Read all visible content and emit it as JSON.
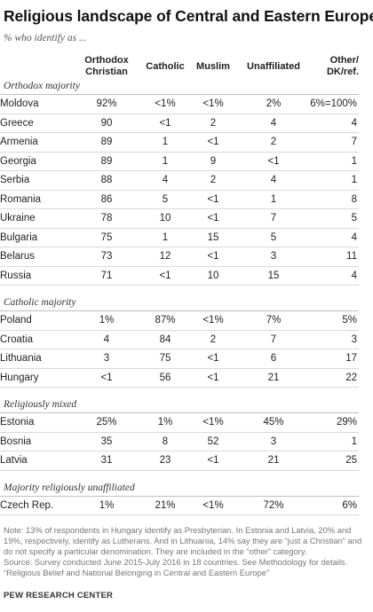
{
  "chart_data": {
    "type": "table",
    "title": "Religious landscape of Central and Eastern Europe",
    "subtitle": "% who identify as ...",
    "columns": [
      {
        "label": "Orthodox Christian",
        "lines": [
          "Orthodox",
          "Christian"
        ]
      },
      {
        "label": "Catholic",
        "lines": [
          "Catholic"
        ]
      },
      {
        "label": "Muslim",
        "lines": [
          "Muslim"
        ]
      },
      {
        "label": "Unaffiliated",
        "lines": [
          "Unaffiliated"
        ]
      },
      {
        "label": "Other/ DK/ref.",
        "lines": [
          "Other/",
          "DK/ref."
        ]
      }
    ],
    "groups": [
      {
        "label": "Orthodox majority",
        "rows": [
          {
            "country": "Moldova",
            "values": [
              "92%",
              "<1%",
              "<1%",
              "2%",
              "6%=100%"
            ]
          },
          {
            "country": "Greece",
            "values": [
              "90",
              "<1",
              "2",
              "4",
              "4"
            ]
          },
          {
            "country": "Armenia",
            "values": [
              "89",
              "1",
              "<1",
              "2",
              "7"
            ]
          },
          {
            "country": "Georgia",
            "values": [
              "89",
              "1",
              "9",
              "<1",
              "1"
            ]
          },
          {
            "country": "Serbia",
            "values": [
              "88",
              "4",
              "2",
              "4",
              "1"
            ]
          },
          {
            "country": "Romania",
            "values": [
              "86",
              "5",
              "<1",
              "1",
              "8"
            ]
          },
          {
            "country": "Ukraine",
            "values": [
              "78",
              "10",
              "<1",
              "7",
              "5"
            ]
          },
          {
            "country": "Bulgaria",
            "values": [
              "75",
              "1",
              "15",
              "5",
              "4"
            ]
          },
          {
            "country": "Belarus",
            "values": [
              "73",
              "12",
              "<1",
              "3",
              "11"
            ]
          },
          {
            "country": "Russia",
            "values": [
              "71",
              "<1",
              "10",
              "15",
              "4"
            ]
          }
        ]
      },
      {
        "label": "Catholic majority",
        "rows": [
          {
            "country": "Poland",
            "values": [
              "1%",
              "87%",
              "<1%",
              "7%",
              "5%"
            ]
          },
          {
            "country": "Croatia",
            "values": [
              "4",
              "84",
              "2",
              "7",
              "3"
            ]
          },
          {
            "country": "Lithuania",
            "values": [
              "3",
              "75",
              "<1",
              "6",
              "17"
            ]
          },
          {
            "country": "Hungary",
            "values": [
              "<1",
              "56",
              "<1",
              "21",
              "22"
            ]
          }
        ]
      },
      {
        "label": "Religiously mixed",
        "rows": [
          {
            "country": "Estonia",
            "values": [
              "25%",
              "1%",
              "<1%",
              "45%",
              "29%"
            ]
          },
          {
            "country": "Bosnia",
            "values": [
              "35",
              "8",
              "52",
              "3",
              "1"
            ]
          },
          {
            "country": "Latvia",
            "values": [
              "31",
              "23",
              "<1",
              "21",
              "25"
            ]
          }
        ]
      },
      {
        "label": "Majority religiously unaffiliated",
        "rows": [
          {
            "country": "Czech Rep.",
            "values": [
              "1%",
              "21%",
              "<1%",
              "72%",
              "6%"
            ]
          }
        ]
      }
    ]
  },
  "notes": {
    "note": "Note: 13% of respondents in Hungary identify as Presbyterian. In Estonia and Latvia, 20% and 19%, respectively, identify as Lutherans. And in Lithuania, 14% say they are “just a Christian” and do not specify a particular denomination. They are included in the “other” category.",
    "source": "Source: Survey conducted June 2015-July 2016 in 18 countries. See Methodology for details.",
    "report": "“Religious Belief and National Belonging in Central and Eastern Europe”"
  },
  "brand": "PEW RESEARCH CENTER"
}
